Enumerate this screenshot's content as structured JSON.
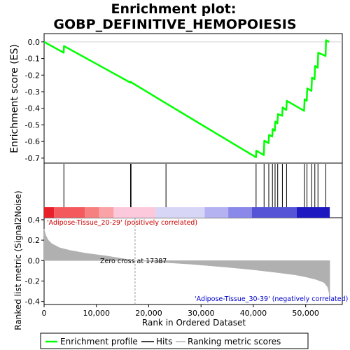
{
  "title_line1": "Enrichment plot:",
  "title_line2": "GOBP_DEFINITIVE_HEMOPOIESIS",
  "es_ylabel": "Enrichment score (ES)",
  "rank_ylabel": "Ranked list metric (Signal2Noise)",
  "xlabel": "Rank in Ordered Dataset",
  "zero_cross_label": "Zero cross at 17387",
  "pos_label": "'Adipose-Tissue_20-29' (positively correlated)",
  "neg_label": "'Adipose-Tissue_30-39' (negatively correlated)",
  "legend": {
    "enrichment": "Enrichment profile",
    "hits": "Hits",
    "metric": "Ranking metric scores"
  },
  "colors": {
    "enrichment": "#00ff00",
    "hits": "#000000",
    "metric": "#b0b0b0"
  },
  "chart_data": {
    "type": "line",
    "x_range": [
      0,
      57000
    ],
    "total_ranks": 54600,
    "zero_cross": 17387,
    "x_ticks": [
      0,
      10000,
      20000,
      30000,
      40000,
      50000
    ],
    "x_tick_labels": [
      "0",
      "10,000",
      "20,000",
      "30,000",
      "40,000",
      "50,000"
    ],
    "es_ylim": [
      -0.73,
      0.05
    ],
    "es_ticks": [
      0.0,
      -0.1,
      -0.2,
      -0.3,
      -0.4,
      -0.5,
      -0.6,
      -0.7
    ],
    "es_tick_labels": [
      "0.0",
      "-0.1",
      "-0.2",
      "-0.3",
      "-0.4",
      "-0.5",
      "-0.6",
      "-0.7"
    ],
    "enrichment_profile": [
      [
        0,
        0.0
      ],
      [
        3750,
        -0.065
      ],
      [
        3800,
        -0.025
      ],
      [
        16500,
        -0.245
      ],
      [
        16550,
        -0.24
      ],
      [
        16650,
        -0.243
      ],
      [
        23300,
        -0.37
      ],
      [
        40500,
        -0.695
      ],
      [
        40550,
        -0.655
      ],
      [
        42000,
        -0.682
      ],
      [
        42100,
        -0.595
      ],
      [
        42900,
        -0.61
      ],
      [
        43000,
        -0.56
      ],
      [
        43600,
        -0.57
      ],
      [
        43700,
        -0.525
      ],
      [
        44100,
        -0.535
      ],
      [
        44200,
        -0.48
      ],
      [
        44600,
        -0.49
      ],
      [
        44700,
        -0.435
      ],
      [
        45500,
        -0.445
      ],
      [
        45600,
        -0.395
      ],
      [
        46300,
        -0.41
      ],
      [
        46400,
        -0.355
      ],
      [
        49700,
        -0.415
      ],
      [
        49800,
        -0.345
      ],
      [
        50200,
        -0.355
      ],
      [
        50300,
        -0.28
      ],
      [
        51100,
        -0.295
      ],
      [
        51200,
        -0.215
      ],
      [
        51700,
        -0.225
      ],
      [
        51800,
        -0.145
      ],
      [
        52300,
        -0.155
      ],
      [
        52400,
        -0.065
      ],
      [
        53800,
        -0.085
      ],
      [
        53900,
        0.01
      ],
      [
        54500,
        0.0
      ]
    ],
    "hit_ranks": [
      3780,
      16520,
      16620,
      23300,
      40520,
      42050,
      42950,
      43650,
      44150,
      44650,
      45550,
      46350,
      49750,
      50250,
      51150,
      51750,
      52350,
      53850
    ],
    "color_bar_segments": [
      {
        "start": 0,
        "end": 1900,
        "color": "#e8202a"
      },
      {
        "start": 1900,
        "end": 7800,
        "color": "#f45a5d"
      },
      {
        "start": 7800,
        "end": 10500,
        "color": "#f68080"
      },
      {
        "start": 10500,
        "end": 13300,
        "color": "#f9a3a6"
      },
      {
        "start": 13300,
        "end": 21300,
        "color": "#fcc8dc"
      },
      {
        "start": 21300,
        "end": 30700,
        "color": "#d8d6f6"
      },
      {
        "start": 30700,
        "end": 35200,
        "color": "#b4b2f0"
      },
      {
        "start": 35200,
        "end": 39700,
        "color": "#8a88e8"
      },
      {
        "start": 39700,
        "end": 48300,
        "color": "#5553d6"
      },
      {
        "start": 48300,
        "end": 54600,
        "color": "#1e18c0"
      }
    ],
    "rank_ylim": [
      -0.43,
      0.42
    ],
    "rank_ticks": [
      0.4,
      0.2,
      0.0,
      -0.2,
      -0.4
    ],
    "rank_tick_labels": [
      "0.4",
      "0.2",
      "0.0",
      "-0.2",
      "-0.4"
    ],
    "ranking_metric": [
      [
        0,
        0.31
      ],
      [
        300,
        0.25
      ],
      [
        800,
        0.2
      ],
      [
        1500,
        0.165
      ],
      [
        3000,
        0.125
      ],
      [
        5000,
        0.1
      ],
      [
        8000,
        0.072
      ],
      [
        12000,
        0.045
      ],
      [
        15000,
        0.02
      ],
      [
        17387,
        0.0
      ],
      [
        22000,
        -0.015
      ],
      [
        28000,
        -0.035
      ],
      [
        35000,
        -0.065
      ],
      [
        40000,
        -0.09
      ],
      [
        45000,
        -0.12
      ],
      [
        48000,
        -0.14
      ],
      [
        50000,
        -0.16
      ],
      [
        52000,
        -0.185
      ],
      [
        53500,
        -0.215
      ],
      [
        54200,
        -0.26
      ],
      [
        54450,
        -0.31
      ],
      [
        54600,
        -0.36
      ]
    ]
  }
}
